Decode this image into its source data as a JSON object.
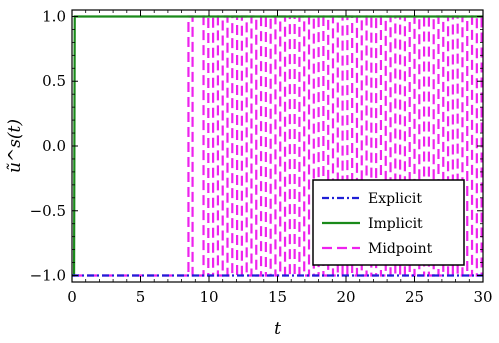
{
  "chart_data": {
    "type": "line",
    "title": "",
    "xlabel": "t",
    "ylabel": "ũ^s(t)",
    "xlim": [
      0,
      30
    ],
    "ylim": [
      -1.05,
      1.05
    ],
    "xticks": [
      0,
      5,
      10,
      15,
      20,
      25,
      30
    ],
    "xtick_labels": [
      "0",
      "5",
      "10",
      "15",
      "20",
      "25",
      "30"
    ],
    "yticks": [
      -1.0,
      -0.5,
      0.0,
      0.5,
      1.0
    ],
    "ytick_labels": [
      "−1.0",
      "−0.5",
      "0.0",
      "0.5",
      "1.0"
    ],
    "legend_position": "lower-right",
    "grid": false,
    "series": [
      {
        "name": "Explicit",
        "color": "#1f1fd6",
        "style": "dashdot",
        "x": [
          0,
          22.9,
          22.9,
          30
        ],
        "y": [
          -1,
          -1,
          -1,
          -1
        ]
      },
      {
        "name": "Implicit",
        "color": "#1a8a1a",
        "style": "solid",
        "x": [
          0,
          0.15,
          0.2,
          0.35,
          30
        ],
        "y": [
          -1,
          -1,
          1,
          1,
          1
        ]
      },
      {
        "name": "Midpoint",
        "color": "#ee22ee",
        "style": "dashed",
        "switch_times": [
          8.5,
          8.8,
          9.6,
          9.95,
          10.3,
          10.65,
          11.0,
          11.35,
          11.7,
          12.05,
          12.4,
          12.75,
          13.1,
          13.45,
          13.8,
          14.15,
          14.5,
          14.85,
          15.2,
          15.55,
          15.9,
          16.25,
          16.6,
          16.95,
          17.3,
          17.65,
          18.0,
          18.35,
          18.7,
          19.05,
          19.4,
          19.75,
          20.1,
          20.45,
          20.8,
          21.15,
          21.5,
          21.85,
          22.2,
          22.55,
          22.9,
          23.25,
          23.6,
          23.95,
          24.3,
          24.65,
          25.0,
          25.35,
          25.7,
          26.05,
          26.4,
          26.75,
          27.1,
          27.45,
          27.8,
          28.15,
          28.5,
          28.85,
          29.2,
          29.55,
          29.9
        ],
        "start_value": -1
      }
    ]
  }
}
